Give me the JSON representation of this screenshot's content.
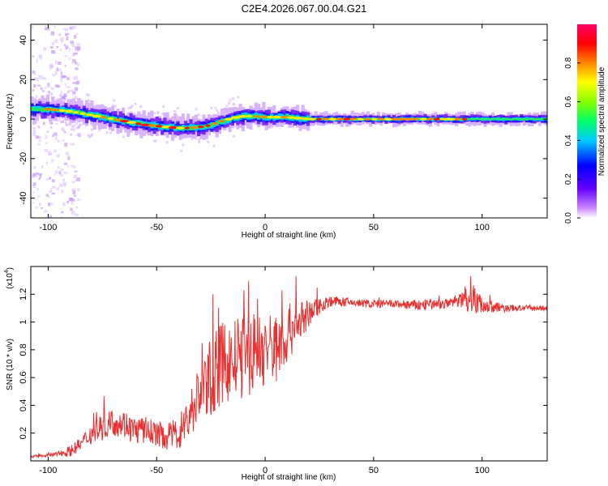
{
  "title": "C2E4.2026.067.00.04.G21",
  "chart_data": [
    {
      "type": "heatmap",
      "xlabel": "Height of straight line (km)",
      "ylabel": "Frequency (Hz)",
      "xlim": [
        -108,
        130
      ],
      "ylim": [
        -50,
        48
      ],
      "xticks": [
        -100,
        -50,
        0,
        50,
        100
      ],
      "yticks": [
        -40,
        -20,
        0,
        20,
        40
      ],
      "colorbar": {
        "label": "Normalized spectral amplitude",
        "range": [
          0.0,
          1.0
        ],
        "ticks": [
          0.0,
          0.2,
          0.4,
          0.6,
          0.8
        ],
        "colors": [
          "#ffffff",
          "#cc88ff",
          "#6600ff",
          "#0000ff",
          "#00ccff",
          "#00ff66",
          "#88ff00",
          "#ffff00",
          "#ff8800",
          "#ff0000",
          "#ff0066"
        ]
      },
      "ridge": {
        "x": [
          -105,
          -100,
          -95,
          -90,
          -85,
          -80,
          -75,
          -70,
          -65,
          -60,
          -55,
          -50,
          -45,
          -40,
          -35,
          -30,
          -25,
          -20,
          -15,
          -10,
          -5,
          0,
          5,
          10,
          15,
          20,
          30,
          50,
          100,
          130
        ],
        "y": [
          5,
          5,
          4.5,
          4,
          3,
          2,
          1,
          0,
          -1,
          -2,
          -3,
          -3.5,
          -4,
          -4.5,
          -4.5,
          -4,
          -3,
          -1,
          0.5,
          1.5,
          1.5,
          1,
          1,
          1,
          0.5,
          0,
          0,
          0,
          0,
          0
        ]
      }
    },
    {
      "type": "line",
      "xlabel": "Height of straight line (km)",
      "ylabel": "SNR (10 * v/v)",
      "yscale_label": "(x10",
      "yscale_exp": "4",
      "xlim": [
        -108,
        130
      ],
      "ylim": [
        0,
        1.4
      ],
      "xticks": [
        -100,
        -50,
        0,
        50,
        100
      ],
      "yticks": [
        0.2,
        0.4,
        0.6,
        0.8,
        1.0,
        1.2
      ],
      "series": [
        {
          "name": "SNR",
          "color": "#e83030",
          "x": [
            -108,
            -100,
            -95,
            -90,
            -85,
            -80,
            -75,
            -70,
            -65,
            -60,
            -55,
            -50,
            -45,
            -40,
            -35,
            -30,
            -25,
            -20,
            -15,
            -10,
            -5,
            0,
            5,
            10,
            15,
            20,
            25,
            30,
            40,
            50,
            60,
            70,
            80,
            85,
            90,
            95,
            100,
            110,
            120,
            130
          ],
          "y": [
            0.03,
            0.04,
            0.05,
            0.07,
            0.12,
            0.2,
            0.25,
            0.28,
            0.27,
            0.22,
            0.22,
            0.2,
            0.17,
            0.2,
            0.32,
            0.5,
            0.6,
            0.7,
            0.72,
            0.75,
            0.78,
            0.8,
            0.82,
            0.9,
            1.0,
            1.05,
            1.12,
            1.15,
            1.14,
            1.13,
            1.13,
            1.12,
            1.13,
            1.13,
            1.16,
            1.18,
            1.12,
            1.1,
            1.1,
            1.1
          ],
          "noise": [
            0.01,
            0.01,
            0.02,
            0.04,
            0.05,
            0.08,
            0.1,
            0.1,
            0.1,
            0.1,
            0.1,
            0.09,
            0.1,
            0.12,
            0.18,
            0.22,
            0.28,
            0.3,
            0.3,
            0.3,
            0.3,
            0.28,
            0.25,
            0.22,
            0.18,
            0.1,
            0.06,
            0.04,
            0.03,
            0.03,
            0.03,
            0.04,
            0.04,
            0.04,
            0.05,
            0.12,
            0.06,
            0.03,
            0.02,
            0.02
          ]
        }
      ]
    }
  ]
}
